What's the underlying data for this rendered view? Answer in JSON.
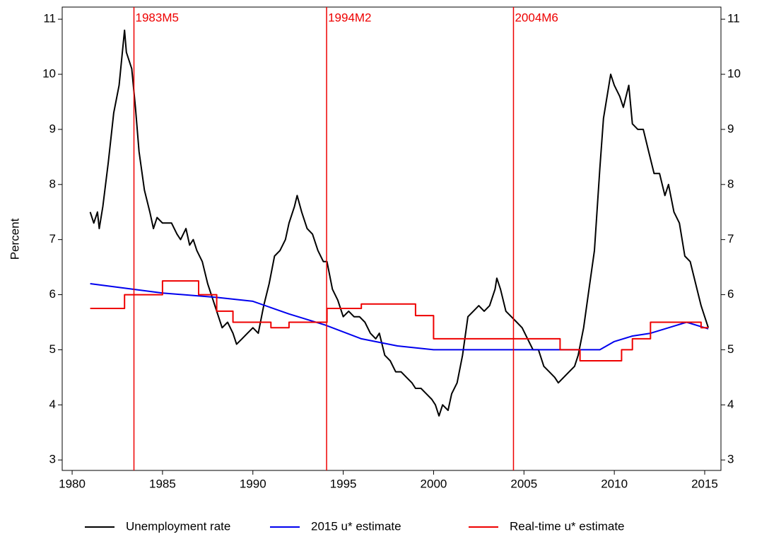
{
  "chart_data": {
    "type": "line",
    "y_label": "Percent",
    "xlim": [
      1979.45,
      2015.9
    ],
    "xticks": [
      1980,
      1985,
      1990,
      1995,
      2000,
      2005,
      2010,
      2015
    ],
    "ylim": [
      2.81,
      11.22
    ],
    "yticks": [
      3,
      4,
      5,
      6,
      7,
      8,
      9,
      10,
      11
    ],
    "y2lim": [
      2.81,
      11.22
    ],
    "y2ticks": [
      3,
      4,
      5,
      6,
      7,
      8,
      9,
      10,
      11
    ],
    "legend": "bottom",
    "reference_lines": [
      {
        "x": 1983.42,
        "label": "1983M5",
        "color": "#ee0000"
      },
      {
        "x": 1994.08,
        "label": "1994M2",
        "color": "#ee0000"
      },
      {
        "x": 2004.42,
        "label": "2004M6",
        "color": "#ee0000"
      }
    ],
    "series": [
      {
        "name": "Unemployment rate",
        "color": "#000000",
        "x": [
          1981.0,
          1981.2,
          1981.4,
          1981.5,
          1981.7,
          1982.0,
          1982.3,
          1982.6,
          1982.9,
          1983.0,
          1983.3,
          1983.5,
          1983.7,
          1984.0,
          1984.3,
          1984.5,
          1984.7,
          1985.0,
          1985.5,
          1985.8,
          1986.0,
          1986.3,
          1986.5,
          1986.7,
          1986.9,
          1987.2,
          1987.5,
          1987.8,
          1988.0,
          1988.3,
          1988.6,
          1988.9,
          1989.1,
          1989.4,
          1989.7,
          1990.0,
          1990.3,
          1990.6,
          1990.9,
          1991.2,
          1991.5,
          1991.8,
          1992.0,
          1992.3,
          1992.45,
          1992.7,
          1993.0,
          1993.3,
          1993.6,
          1993.9,
          1994.1,
          1994.4,
          1994.7,
          1995.0,
          1995.3,
          1995.6,
          1995.9,
          1996.2,
          1996.5,
          1996.8,
          1997.0,
          1997.3,
          1997.6,
          1997.9,
          1998.2,
          1998.5,
          1998.8,
          1999.0,
          1999.3,
          1999.6,
          1999.9,
          2000.1,
          2000.3,
          2000.5,
          2000.8,
          2001.0,
          2001.3,
          2001.6,
          2001.9,
          2002.2,
          2002.5,
          2002.8,
          2003.1,
          2003.4,
          2003.5,
          2003.7,
          2004.0,
          2004.3,
          2004.6,
          2004.9,
          2005.2,
          2005.5,
          2005.8,
          2006.1,
          2006.4,
          2006.7,
          2006.9,
          2007.2,
          2007.5,
          2007.8,
          2008.0,
          2008.3,
          2008.6,
          2008.9,
          2009.2,
          2009.4,
          2009.6,
          2009.8,
          2010.0,
          2010.3,
          2010.5,
          2010.8,
          2011.0,
          2011.3,
          2011.6,
          2011.9,
          2012.2,
          2012.5,
          2012.8,
          2013.0,
          2013.3,
          2013.6,
          2013.9,
          2014.2,
          2014.5,
          2014.8,
          2015.0,
          2015.2
        ],
        "values": [
          7.5,
          7.3,
          7.5,
          7.2,
          7.6,
          8.4,
          9.3,
          9.8,
          10.8,
          10.4,
          10.1,
          9.4,
          8.6,
          7.9,
          7.5,
          7.2,
          7.4,
          7.3,
          7.3,
          7.1,
          7.0,
          7.2,
          6.9,
          7.0,
          6.8,
          6.6,
          6.2,
          5.9,
          5.7,
          5.4,
          5.5,
          5.3,
          5.1,
          5.2,
          5.3,
          5.4,
          5.3,
          5.8,
          6.2,
          6.7,
          6.8,
          7.0,
          7.3,
          7.6,
          7.8,
          7.5,
          7.2,
          7.1,
          6.8,
          6.6,
          6.6,
          6.1,
          5.9,
          5.6,
          5.7,
          5.6,
          5.6,
          5.5,
          5.3,
          5.2,
          5.3,
          4.9,
          4.8,
          4.6,
          4.6,
          4.5,
          4.4,
          4.3,
          4.3,
          4.2,
          4.1,
          4.0,
          3.8,
          4.0,
          3.9,
          4.2,
          4.4,
          4.9,
          5.6,
          5.7,
          5.8,
          5.7,
          5.8,
          6.1,
          6.3,
          6.1,
          5.7,
          5.6,
          5.5,
          5.4,
          5.2,
          5.0,
          5.0,
          4.7,
          4.6,
          4.5,
          4.4,
          4.5,
          4.6,
          4.7,
          4.9,
          5.4,
          6.1,
          6.8,
          8.3,
          9.2,
          9.6,
          10.0,
          9.8,
          9.6,
          9.4,
          9.8,
          9.1,
          9.0,
          9.0,
          8.6,
          8.2,
          8.2,
          7.8,
          8.0,
          7.5,
          7.3,
          6.7,
          6.6,
          6.2,
          5.8,
          5.6,
          5.4
        ]
      },
      {
        "name": "2015 u* estimate",
        "color": "#0000ee",
        "x": [
          1981.0,
          1985.0,
          1988.0,
          1990.0,
          1992.0,
          1994.0,
          1996.0,
          1998.0,
          2000.0,
          2005.0,
          2009.2,
          2010.0,
          2011.0,
          2012.0,
          2013.0,
          2014.0,
          2015.2
        ],
        "values": [
          6.2,
          6.03,
          5.95,
          5.88,
          5.65,
          5.45,
          5.2,
          5.07,
          5.0,
          5.0,
          5.0,
          5.15,
          5.25,
          5.3,
          5.4,
          5.5,
          5.38
        ]
      },
      {
        "name": "Real-time u* estimate",
        "color": "#ee0000",
        "x": [
          1981.0,
          1982.9,
          1982.9,
          1985.0,
          1985.0,
          1987.0,
          1987.0,
          1988.0,
          1988.0,
          1988.9,
          1988.9,
          1991.0,
          1991.0,
          1992.0,
          1992.0,
          1994.1,
          1994.1,
          1996.0,
          1996.0,
          1999.0,
          1999.0,
          2000.0,
          2000.0,
          2007.0,
          2007.0,
          2008.1,
          2008.1,
          2010.4,
          2010.4,
          2011.0,
          2011.0,
          2012.0,
          2012.0,
          2014.8,
          2014.8,
          2015.2
        ],
        "values": [
          5.75,
          5.75,
          6.0,
          6.0,
          6.25,
          6.25,
          6.0,
          6.0,
          5.7,
          5.7,
          5.5,
          5.5,
          5.4,
          5.4,
          5.5,
          5.5,
          5.75,
          5.75,
          5.83,
          5.83,
          5.62,
          5.62,
          5.2,
          5.2,
          5.0,
          5.0,
          4.8,
          4.8,
          5.0,
          5.0,
          5.2,
          5.2,
          5.5,
          5.5,
          5.4,
          5.4
        ]
      }
    ]
  }
}
